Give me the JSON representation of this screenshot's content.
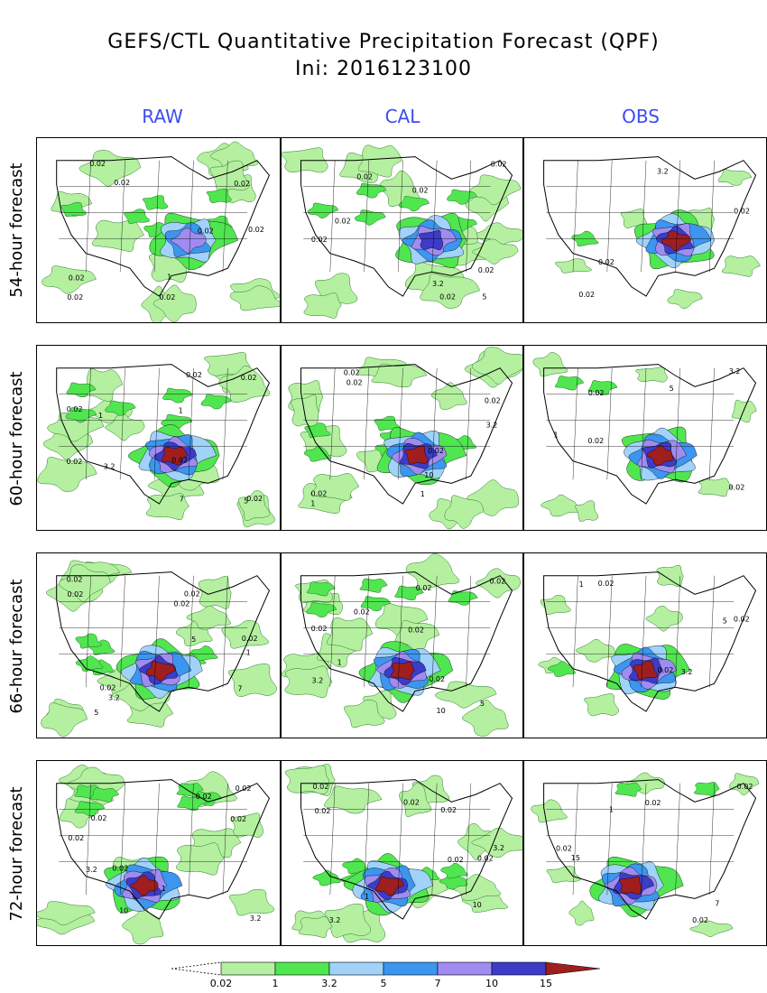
{
  "title_line1": "GEFS/CTL Quantitative Precipitation Forecast (QPF)",
  "title_line2": "Ini: 2016123100",
  "columns": [
    "RAW",
    "CAL",
    "OBS"
  ],
  "rows": [
    "54-hour forecast",
    "60-hour forecast",
    "66-hour forecast",
    "72-hour forecast"
  ],
  "colors": {
    "heading_blue": "#3b4cf0",
    "c1": "#b4f0a0",
    "c2": "#50e650",
    "c3": "#a0d2fa",
    "c4": "#3c96f0",
    "c5": "#a08cf0",
    "c6": "#3c3cc8",
    "c7": "#a01e1e"
  },
  "colorbar": {
    "labels": [
      "0.02",
      "1",
      "3.2",
      "5",
      "7",
      "10",
      "15"
    ]
  },
  "panels": [
    {
      "row": 0,
      "col": 0,
      "labels": [
        "0.02",
        "0.02",
        "0.02",
        "0.02",
        "0.02",
        "0.02",
        "0.02",
        "1",
        "0.02"
      ],
      "max_level": 5
    },
    {
      "row": 0,
      "col": 1,
      "labels": [
        "0.02",
        "0.02",
        "0.02",
        "0.02",
        "0.02",
        "0.02",
        "0.02",
        "3.2",
        "5"
      ],
      "max_level": 6
    },
    {
      "row": 0,
      "col": 2,
      "labels": [
        "0.02",
        "0.02",
        "0.02",
        "3.2"
      ],
      "max_level": 7
    },
    {
      "row": 1,
      "col": 0,
      "labels": [
        "0.02",
        "0.02",
        "0.02",
        "0.02",
        "0.02",
        "1",
        "3.2",
        "5",
        "7",
        "0.02",
        "1"
      ],
      "max_level": 7
    },
    {
      "row": 1,
      "col": 1,
      "labels": [
        "0.02",
        "0.02",
        "0.02",
        "0.02",
        "0.02",
        "3.2",
        "10",
        "1",
        "1"
      ],
      "max_level": 7
    },
    {
      "row": 1,
      "col": 2,
      "labels": [
        "0.02",
        "0.02",
        "0.02",
        "3.2",
        "5",
        "1"
      ],
      "max_level": 7
    },
    {
      "row": 2,
      "col": 0,
      "labels": [
        "0.02",
        "0.02",
        "0.02",
        "0.02",
        "0.02",
        "1",
        "3.2",
        "5",
        "7",
        "5",
        "0.02"
      ],
      "max_level": 7
    },
    {
      "row": 2,
      "col": 1,
      "labels": [
        "0.02",
        "0.02",
        "0.02",
        "0.02",
        "0.02",
        "1",
        "5",
        "10",
        "3.2",
        "0.02"
      ],
      "max_level": 7
    },
    {
      "row": 2,
      "col": 2,
      "labels": [
        "0.02",
        "0.02",
        "0.02",
        "1",
        "5",
        "3.2"
      ],
      "max_level": 7
    },
    {
      "row": 3,
      "col": 0,
      "labels": [
        "0.02",
        "0.02",
        "0.02",
        "0.02",
        "0.02",
        "1",
        "3.2",
        "10",
        "3.2",
        "0.02"
      ],
      "max_level": 7
    },
    {
      "row": 3,
      "col": 1,
      "labels": [
        "0.02",
        "0.02",
        "0.02",
        "0.02",
        "3.2",
        "1",
        "3.2",
        "10",
        "0.02",
        "0.02"
      ],
      "max_level": 7
    },
    {
      "row": 3,
      "col": 2,
      "labels": [
        "0.02",
        "0.02",
        "0.02",
        "1",
        "15",
        "7",
        "0.02"
      ],
      "max_level": 7
    }
  ]
}
